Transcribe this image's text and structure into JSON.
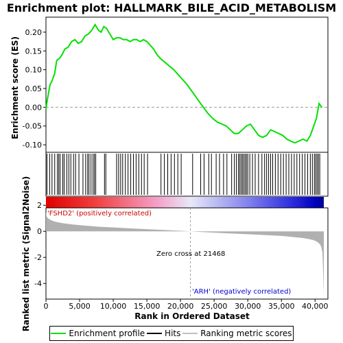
{
  "title": "Enrichment plot: HALLMARK_BILE_ACID_METABOLISM",
  "colors": {
    "es_line": "#00e000",
    "hits": "#000000",
    "metric_fill": "#b0b0b0",
    "pos_label": "#cc0000",
    "neg_label": "#0000cc"
  },
  "chart_data": [
    {
      "type": "line",
      "ylabel": "Enrichment score (ES)",
      "ylim": [
        -0.12,
        0.24
      ],
      "yticks": [
        -0.1,
        -0.05,
        0.0,
        0.05,
        0.1,
        0.15,
        0.2
      ],
      "ytick_labels": [
        "-0.10",
        "-0.05",
        "0.00",
        "0.05",
        "0.10",
        "0.15",
        "0.20"
      ],
      "xlim": [
        0,
        41300
      ],
      "series": [
        {
          "x": [
            0,
            200,
            600,
            900,
            1300,
            1600,
            2000,
            2400,
            2800,
            3300,
            3800,
            4300,
            4800,
            5300,
            5800,
            6300,
            6800,
            7300,
            7800,
            8200,
            8600,
            9000,
            9500,
            10000,
            10500,
            11000,
            11500,
            12000,
            12500,
            13000,
            13500,
            14000,
            14500,
            15000,
            15500,
            16000,
            16500,
            17000,
            18000,
            19000,
            20000,
            21000,
            22000,
            23000,
            24000,
            24800,
            25500,
            26200,
            26800,
            27400,
            28000,
            28600,
            29200,
            29800,
            30400,
            31000,
            31600,
            32200,
            32800,
            33400,
            34000,
            34600,
            35200,
            35800,
            36400,
            37000,
            37600,
            38200,
            38800,
            39300,
            39800,
            40200,
            40600,
            41000
          ],
          "y": [
            -0.005,
            0.02,
            0.06,
            0.07,
            0.09,
            0.125,
            0.13,
            0.14,
            0.155,
            0.16,
            0.175,
            0.18,
            0.17,
            0.175,
            0.19,
            0.195,
            0.205,
            0.22,
            0.205,
            0.2,
            0.215,
            0.21,
            0.195,
            0.18,
            0.185,
            0.185,
            0.18,
            0.18,
            0.175,
            0.18,
            0.18,
            0.175,
            0.18,
            0.175,
            0.165,
            0.155,
            0.14,
            0.13,
            0.115,
            0.1,
            0.08,
            0.06,
            0.035,
            0.01,
            -0.015,
            -0.03,
            -0.04,
            -0.045,
            -0.05,
            -0.06,
            -0.07,
            -0.07,
            -0.06,
            -0.05,
            -0.045,
            -0.06,
            -0.075,
            -0.08,
            -0.075,
            -0.06,
            -0.065,
            -0.07,
            -0.075,
            -0.085,
            -0.09,
            -0.095,
            -0.09,
            -0.085,
            -0.09,
            -0.075,
            -0.05,
            -0.03,
            0.01,
            0.0
          ]
        }
      ]
    },
    {
      "type": "scatter",
      "name": "hits",
      "x": [
        150,
        550,
        900,
        1300,
        1700,
        1900,
        2100,
        2500,
        2700,
        3100,
        3400,
        3700,
        4100,
        4400,
        4900,
        5500,
        5900,
        6200,
        6400,
        6700,
        7000,
        7200,
        7400,
        8700,
        8900,
        10500,
        10800,
        11100,
        11400,
        11800,
        12200,
        12600,
        13000,
        13400,
        13800,
        14200,
        14600,
        15100,
        17100,
        17600,
        18100,
        18600,
        19100,
        19600,
        20100,
        21800,
        23000,
        23500,
        24200,
        24600,
        25300,
        25800,
        26400,
        26900,
        27600,
        28000,
        28300,
        28600,
        28800,
        29000,
        29200,
        29400,
        29600,
        29800,
        30000,
        30300,
        30700,
        31100,
        31600,
        32100,
        32500,
        32800,
        33100,
        33400,
        33700,
        34100,
        34500,
        34900,
        35300,
        35700,
        36100,
        36500,
        36900,
        37300,
        37700,
        38100,
        38500,
        38900,
        39300,
        39600,
        39900,
        40100,
        40300,
        40500,
        40700
      ]
    },
    {
      "type": "area",
      "ylabel": "Ranked list metric (Signal2Noise)",
      "xlabel": "Rank in Ordered Dataset",
      "ylim": [
        -5.2,
        1.8
      ],
      "yticks": [
        -4,
        -2,
        0,
        2
      ],
      "ytick_labels": [
        "-4",
        "-2",
        "0",
        "2"
      ],
      "xticks": [
        0,
        5000,
        10000,
        15000,
        20000,
        25000,
        30000,
        35000,
        40000
      ],
      "xtick_labels": [
        "0",
        "5,000",
        "10,000",
        "15,000",
        "20,000",
        "25,000",
        "30,000",
        "35,000",
        "40,000"
      ],
      "x": [
        0,
        100,
        300,
        600,
        1000,
        1500,
        2500,
        4000,
        6000,
        8000,
        10000,
        12000,
        14000,
        16000,
        18000,
        20000,
        21468,
        23000,
        25000,
        27000,
        29000,
        31000,
        33000,
        35000,
        36500,
        38000,
        39000,
        39800,
        40300,
        40700,
        40900,
        41100,
        41200,
        41300
      ],
      "y": [
        1.5,
        1.15,
        1.0,
        0.9,
        0.8,
        0.72,
        0.62,
        0.52,
        0.43,
        0.35,
        0.3,
        0.24,
        0.19,
        0.14,
        0.09,
        0.04,
        0.0,
        -0.05,
        -0.1,
        -0.15,
        -0.2,
        -0.25,
        -0.3,
        -0.35,
        -0.42,
        -0.5,
        -0.58,
        -0.68,
        -0.8,
        -0.98,
        -1.15,
        -1.6,
        -3.0,
        -4.85
      ]
    }
  ],
  "annotations": {
    "pos_label": "'FSHD2' (positively correlated)",
    "neg_label": "'ARH' (negatively correlated)",
    "zero_cross": "Zero cross at 21468"
  },
  "legend": {
    "items": [
      "Enrichment profile",
      "Hits",
      "Ranking metric scores"
    ]
  }
}
